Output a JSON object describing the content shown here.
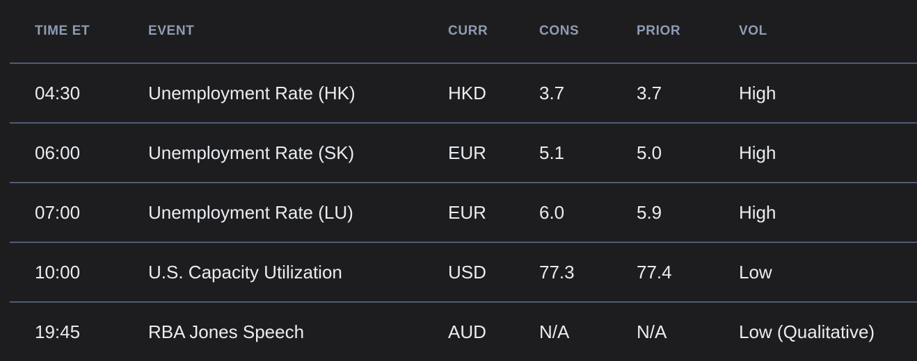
{
  "table": {
    "columns": [
      {
        "label": "TIME ET"
      },
      {
        "label": "EVENT"
      },
      {
        "label": "CURR"
      },
      {
        "label": "CONS"
      },
      {
        "label": "PRIOR"
      },
      {
        "label": "VOL"
      }
    ],
    "rows": [
      {
        "time": "04:30",
        "event": "Unemployment Rate (HK)",
        "curr": "HKD",
        "cons": "3.7",
        "prior": "3.7",
        "vol": "High"
      },
      {
        "time": "06:00",
        "event": "Unemployment Rate (SK)",
        "curr": "EUR",
        "cons": "5.1",
        "prior": "5.0",
        "vol": "High"
      },
      {
        "time": "07:00",
        "event": "Unemployment Rate (LU)",
        "curr": "EUR",
        "cons": "6.0",
        "prior": "5.9",
        "vol": "High"
      },
      {
        "time": "10:00",
        "event": "U.S. Capacity Utilization",
        "curr": "USD",
        "cons": "77.3",
        "prior": "77.4",
        "vol": "Low"
      },
      {
        "time": "19:45",
        "event": "RBA Jones Speech",
        "curr": "AUD",
        "cons": "N/A",
        "prior": "N/A",
        "vol": "Low (Qualitative)"
      }
    ]
  },
  "colors": {
    "background": "#1d1d1f",
    "header_text": "#8e9cb4",
    "body_text": "#e9ecf2",
    "divider": "#505c76"
  }
}
